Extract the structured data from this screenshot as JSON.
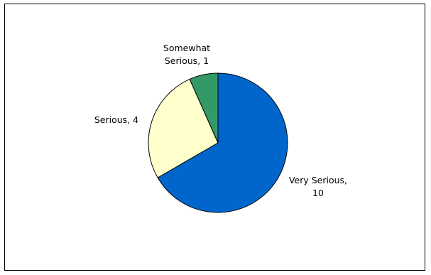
{
  "chart_data": {
    "type": "pie",
    "title": "",
    "categories": [
      "Very Serious",
      "Serious",
      "Somewhat Serious"
    ],
    "values": [
      10,
      4,
      1
    ],
    "colors": [
      "#0066CC",
      "#FFFFCC",
      "#339966"
    ],
    "outline_color": "#000000",
    "labels": [
      {
        "lines": [
          "Very Serious,",
          "10"
        ]
      },
      {
        "lines": [
          "Serious, 4"
        ]
      },
      {
        "lines": [
          "Somewhat",
          "Serious, 1"
        ]
      }
    ],
    "legend": "none"
  }
}
